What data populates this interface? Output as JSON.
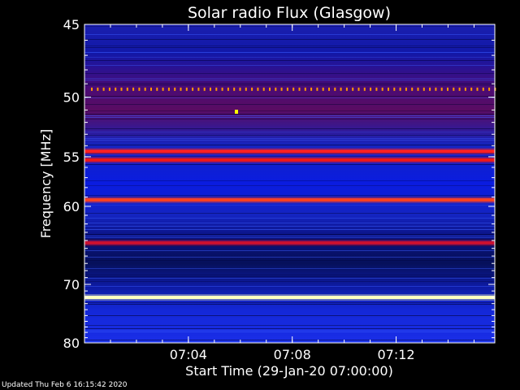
{
  "chart_data": {
    "type": "heatmap",
    "title": "Solar radio Flux (Glasgow)",
    "xlabel": "Start Time (29-Jan-20 07:00:00)",
    "ylabel": "Frequency [MHz]",
    "x_range_minutes": [
      0,
      15.8
    ],
    "x_ticks": [
      {
        "minute": 4,
        "label": "07:04"
      },
      {
        "minute": 8,
        "label": "07:08"
      },
      {
        "minute": 12,
        "label": "07:12"
      }
    ],
    "y_range": [
      45,
      80
    ],
    "y_ticks": [
      45,
      50,
      55,
      60,
      70,
      80
    ],
    "y_scale": "reciprocal",
    "bands": [
      {
        "freq": 49.4,
        "color": "#ff9900",
        "type": "dotted"
      },
      {
        "freq": 54.5,
        "color": "#ff2020"
      },
      {
        "freq": 55.3,
        "color": "#ee1818"
      },
      {
        "freq": 59.3,
        "color": "#ff4020"
      },
      {
        "freq": 64.3,
        "color": "#cc1030"
      },
      {
        "freq": 72.0,
        "color": "#ffffc0"
      }
    ],
    "spot": {
      "minute": 5.85,
      "freq": 51.1,
      "color": "#ffff00"
    }
  },
  "footer": "Updated Thu Feb  6 16:15:42 2020"
}
